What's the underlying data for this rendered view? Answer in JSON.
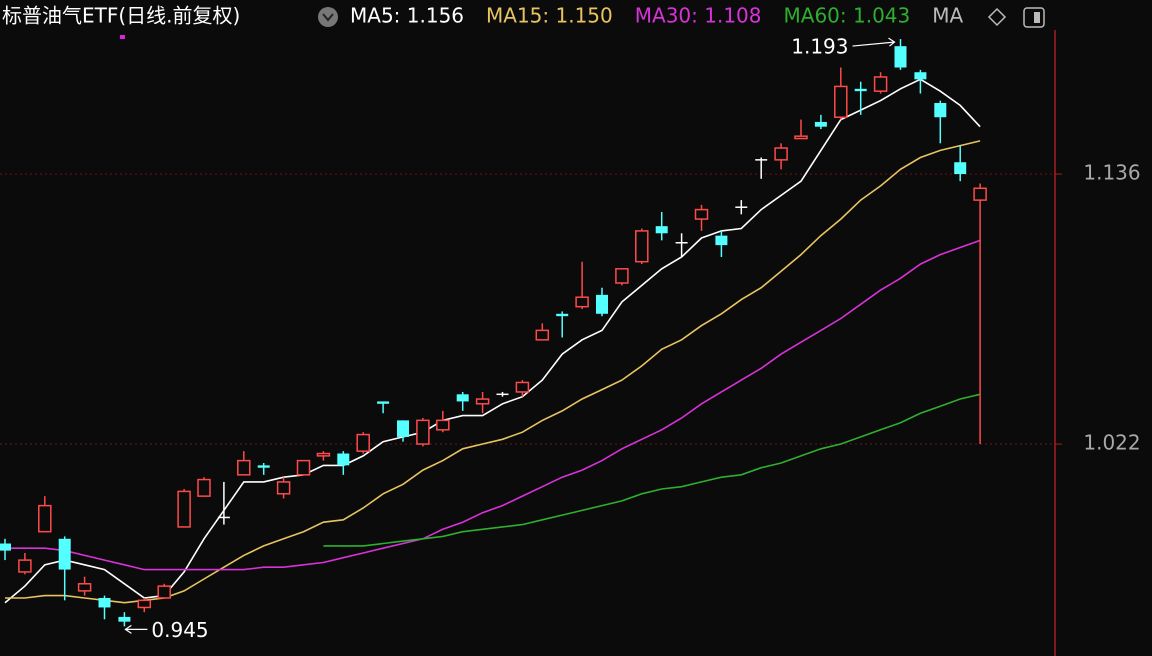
{
  "chart_data": {
    "type": "candlestick",
    "title": "标普油气ETF(日线.前复权)",
    "open": [
      0.98,
      0.968,
      0.985,
      0.982,
      0.96,
      0.957,
      0.949,
      0.953,
      0.957,
      0.987,
      1.0,
      0.991,
      1.009,
      1.013,
      1.001,
      1.009,
      1.017,
      1.018,
      1.019,
      1.04,
      1.032,
      1.022,
      1.028,
      1.043,
      1.039,
      1.043,
      1.044,
      1.066,
      1.077,
      1.08,
      1.085,
      1.09,
      1.099,
      1.114,
      1.107,
      1.117,
      1.11,
      1.122,
      1.142,
      1.142,
      1.151,
      1.158,
      1.16,
      1.172,
      1.171,
      1.19,
      1.179,
      1.166,
      1.141,
      1.125
    ],
    "high": [
      0.982,
      0.976,
      1.0,
      0.983,
      0.966,
      0.958,
      0.951,
      0.957,
      0.963,
      1.003,
      1.008,
      1.006,
      1.019,
      1.014,
      1.008,
      1.015,
      1.019,
      1.019,
      1.027,
      1.04,
      1.032,
      1.033,
      1.036,
      1.044,
      1.044,
      1.044,
      1.049,
      1.073,
      1.078,
      1.099,
      1.088,
      1.096,
      1.113,
      1.12,
      1.111,
      1.123,
      1.112,
      1.125,
      1.143,
      1.149,
      1.159,
      1.161,
      1.181,
      1.175,
      1.179,
      1.193,
      1.18,
      1.167,
      1.148,
      1.132
    ],
    "low": [
      0.973,
      0.967,
      0.985,
      0.956,
      0.958,
      0.948,
      0.945,
      0.951,
      0.957,
      0.987,
      1.0,
      0.988,
      1.009,
      1.009,
      0.999,
      1.009,
      1.015,
      1.009,
      1.018,
      1.035,
      1.023,
      1.021,
      1.027,
      1.036,
      1.035,
      1.042,
      1.042,
      1.066,
      1.067,
      1.079,
      1.076,
      1.089,
      1.098,
      1.108,
      1.101,
      1.112,
      1.101,
      1.119,
      1.134,
      1.138,
      1.151,
      1.155,
      1.159,
      1.161,
      1.17,
      1.18,
      1.17,
      1.149,
      1.133,
      1.022
    ],
    "close": [
      0.977,
      0.973,
      0.996,
      0.969,
      0.963,
      0.953,
      0.947,
      0.956,
      0.962,
      1.002,
      1.007,
      0.991,
      1.015,
      1.012,
      1.006,
      1.015,
      1.018,
      1.013,
      1.026,
      1.039,
      1.025,
      1.032,
      1.032,
      1.04,
      1.041,
      1.043,
      1.048,
      1.07,
      1.076,
      1.084,
      1.077,
      1.096,
      1.112,
      1.111,
      1.107,
      1.121,
      1.106,
      1.122,
      1.142,
      1.147,
      1.152,
      1.156,
      1.173,
      1.171,
      1.177,
      1.181,
      1.176,
      1.16,
      1.136,
      1.13
    ],
    "up_color": "#ff4a4a",
    "down_color": "#54ffff",
    "doji_color": "#ffffff",
    "series": [
      {
        "name": "MA5",
        "legend_label": "MA5: 1.156",
        "color": "#ffffff",
        "values": [
          0.955,
          0.962,
          0.971,
          0.973,
          0.971,
          0.969,
          0.963,
          0.957,
          0.958,
          0.968,
          0.982,
          0.994,
          1.006,
          1.006,
          1.008,
          1.009,
          1.013,
          1.013,
          1.017,
          1.023,
          1.025,
          1.027,
          1.032,
          1.034,
          1.034,
          1.039,
          1.042,
          1.049,
          1.06,
          1.066,
          1.07,
          1.082,
          1.089,
          1.096,
          1.101,
          1.109,
          1.112,
          1.113,
          1.121,
          1.127,
          1.133,
          1.146,
          1.159,
          1.163,
          1.167,
          1.172,
          1.176,
          1.171,
          1.165,
          1.156
        ]
      },
      {
        "name": "MA15",
        "legend_label": "MA15: 1.150",
        "color": "#e8c460",
        "values": [
          0.957,
          0.957,
          0.958,
          0.958,
          0.957,
          0.956,
          0.955,
          0.956,
          0.957,
          0.96,
          0.965,
          0.97,
          0.975,
          0.979,
          0.982,
          0.985,
          0.989,
          0.99,
          0.995,
          1.001,
          1.005,
          1.011,
          1.015,
          1.02,
          1.022,
          1.024,
          1.027,
          1.032,
          1.036,
          1.041,
          1.045,
          1.049,
          1.055,
          1.062,
          1.066,
          1.072,
          1.077,
          1.083,
          1.088,
          1.095,
          1.102,
          1.11,
          1.117,
          1.125,
          1.131,
          1.138,
          1.143,
          1.146,
          1.148,
          1.15
        ]
      },
      {
        "name": "MA30",
        "legend_label": "MA30: 1.108",
        "color": "#d733d8",
        "values": [
          0.978,
          0.978,
          0.978,
          0.977,
          0.975,
          0.973,
          0.971,
          0.969,
          0.969,
          0.969,
          0.969,
          0.969,
          0.969,
          0.97,
          0.97,
          0.971,
          0.972,
          0.974,
          0.976,
          0.978,
          0.98,
          0.982,
          0.986,
          0.989,
          0.993,
          0.996,
          1.0,
          1.004,
          1.008,
          1.011,
          1.015,
          1.02,
          1.024,
          1.028,
          1.033,
          1.039,
          1.044,
          1.049,
          1.054,
          1.06,
          1.065,
          1.07,
          1.075,
          1.081,
          1.087,
          1.092,
          1.098,
          1.102,
          1.105,
          1.108
        ]
      },
      {
        "name": "MA60",
        "legend_label": "MA60: 1.043",
        "color": "#2fae2f",
        "values": [
          null,
          null,
          null,
          null,
          null,
          null,
          null,
          null,
          null,
          null,
          null,
          null,
          null,
          null,
          null,
          null,
          0.979,
          0.979,
          0.979,
          0.98,
          0.981,
          0.982,
          0.983,
          0.985,
          0.986,
          0.987,
          0.988,
          0.99,
          0.992,
          0.994,
          0.996,
          0.998,
          1.001,
          1.003,
          1.004,
          1.006,
          1.008,
          1.009,
          1.012,
          1.014,
          1.017,
          1.02,
          1.022,
          1.025,
          1.028,
          1.031,
          1.035,
          1.038,
          1.041,
          1.043
        ]
      }
    ],
    "legend_more": "MA",
    "ylim": [
      0.9325,
      1.2095
    ],
    "yticks": [
      1.136,
      1.022
    ],
    "grid": true,
    "annotations": [
      1.193,
      0.945
    ]
  }
}
